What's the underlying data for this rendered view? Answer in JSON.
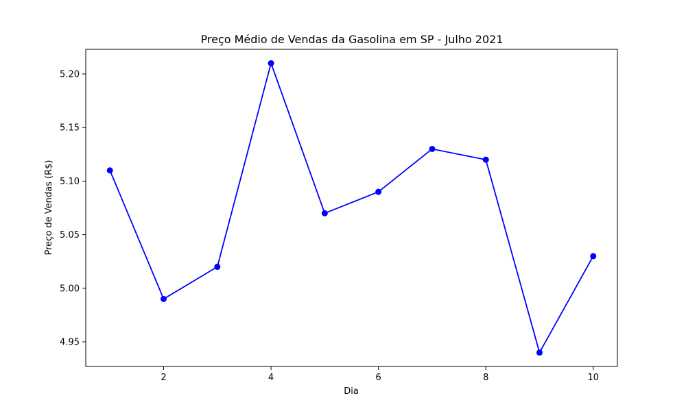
{
  "chart_data": {
    "type": "line",
    "title": "Preço Médio de Vendas da Gasolina em SP - Julho 2021",
    "xlabel": "Dia",
    "ylabel": "Preço de Vendas (R$)",
    "x": [
      1,
      2,
      3,
      4,
      5,
      6,
      7,
      8,
      9,
      10
    ],
    "series": [
      {
        "values": [
          5.11,
          4.99,
          5.02,
          5.21,
          5.07,
          5.09,
          5.13,
          5.12,
          4.94,
          5.03
        ]
      }
    ],
    "xlim": [
      0.55,
      10.45
    ],
    "ylim": [
      4.927,
      5.223
    ],
    "xticks": [
      2,
      4,
      6,
      8,
      10
    ],
    "xtick_labels": [
      "2",
      "4",
      "6",
      "8",
      "10"
    ],
    "yticks": [
      4.95,
      5.0,
      5.05,
      5.1,
      5.15,
      5.2
    ],
    "ytick_labels": [
      "4.95",
      "5.00",
      "5.05",
      "5.10",
      "5.15",
      "5.20"
    ],
    "grid": false,
    "line_color": "#0000ff",
    "marker": "circle"
  }
}
